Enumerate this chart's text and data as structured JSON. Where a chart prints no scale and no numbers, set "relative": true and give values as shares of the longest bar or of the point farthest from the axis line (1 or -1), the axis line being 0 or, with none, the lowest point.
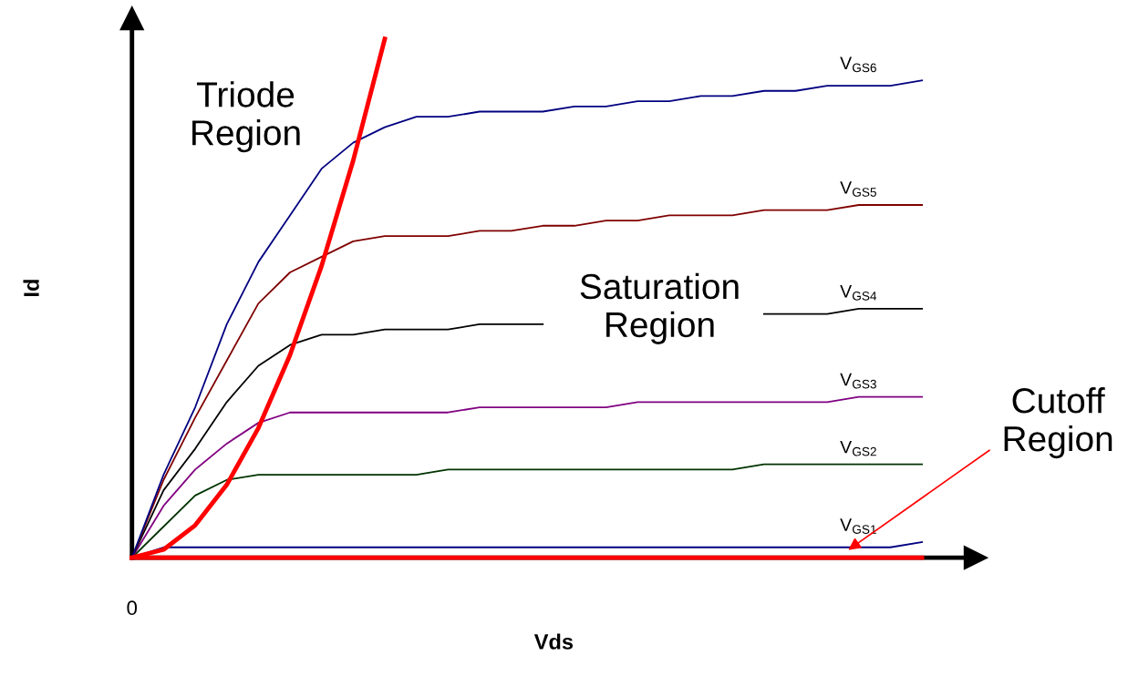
{
  "chart_data": {
    "type": "line",
    "relative": true,
    "xlabel": "Vds",
    "ylabel": "Id",
    "legend": false,
    "grid": false,
    "marker": "none",
    "line_style": "solid",
    "categories": [
      null,
      null,
      null,
      null,
      null,
      null,
      null,
      null,
      null,
      null,
      null,
      null,
      null,
      null,
      null,
      null,
      null,
      null,
      null,
      null,
      null,
      null,
      null,
      null,
      null,
      null
    ],
    "series": [
      {
        "name": "V$_{GS1}$",
        "color": "#000080",
        "values": [
          0,
          0.02,
          0.02,
          0.02,
          0.02,
          0.02,
          0.02,
          0.02,
          0.02,
          0.02,
          0.02,
          0.02,
          0.02,
          0.02,
          0.02,
          0.02,
          0.02,
          0.02,
          0.02,
          0.02,
          0.02,
          0.02,
          0.02,
          0.02,
          0.02,
          0.03
        ]
      },
      {
        "name": "V$_{GS2}$",
        "color": "#003300",
        "values": [
          0,
          0.06,
          0.12,
          0.15,
          0.16,
          0.16,
          0.16,
          0.16,
          0.16,
          0.16,
          0.17,
          0.17,
          0.17,
          0.17,
          0.17,
          0.17,
          0.17,
          0.17,
          0.17,
          0.17,
          0.18,
          0.18,
          0.18,
          0.18,
          0.18,
          0.18
        ]
      },
      {
        "name": "V$_{GS3}$",
        "color": "#800080",
        "values": [
          0,
          0.1,
          0.17,
          0.22,
          0.26,
          0.28,
          0.28,
          0.28,
          0.28,
          0.28,
          0.28,
          0.29,
          0.29,
          0.29,
          0.29,
          0.29,
          0.3,
          0.3,
          0.3,
          0.3,
          0.3,
          0.3,
          0.3,
          0.31,
          0.31,
          0.31
        ]
      },
      {
        "name": "V$_{GS4}$",
        "color": "#000000",
        "values": [
          0,
          0.13,
          0.21,
          0.3,
          0.37,
          0.41,
          0.43,
          0.43,
          0.44,
          0.44,
          0.44,
          0.45,
          0.45,
          0.45,
          null,
          null,
          null,
          null,
          null,
          null,
          0.47,
          0.47,
          0.47,
          0.48,
          0.48,
          0.48
        ]
      },
      {
        "name": "V$_{GS5}$",
        "color": "#800000",
        "values": [
          0,
          0.15,
          0.27,
          0.38,
          0.49,
          0.55,
          0.58,
          0.61,
          0.62,
          0.62,
          0.62,
          0.63,
          0.63,
          0.64,
          0.64,
          0.65,
          0.65,
          0.66,
          0.66,
          0.66,
          0.67,
          0.67,
          0.67,
          0.68,
          0.68,
          0.68
        ]
      },
      {
        "name": "V$_{GS6}$",
        "color": "#000080",
        "values": [
          0,
          0.16,
          0.29,
          0.45,
          0.57,
          0.66,
          0.75,
          0.8,
          0.83,
          0.85,
          0.85,
          0.86,
          0.86,
          0.86,
          0.87,
          0.87,
          0.88,
          0.88,
          0.89,
          0.89,
          0.9,
          0.9,
          0.91,
          0.91,
          0.91,
          0.92
        ]
      },
      {
        "color": "#ff0000",
        "values": [
          0,
          0.0156,
          0.0625,
          0.1406,
          0.25,
          0.3906,
          0.5625,
          0.7656,
          1.0,
          null,
          null,
          null,
          null,
          null,
          null,
          null,
          null,
          null,
          null,
          null,
          null,
          null,
          null,
          null,
          null,
          null
        ]
      },
      {
        "color": "#ff0000",
        "values": [
          0,
          0,
          0,
          0,
          0,
          0,
          0,
          0,
          0,
          0,
          0,
          0,
          0,
          0,
          0,
          0,
          0,
          0,
          0,
          0,
          0,
          0,
          0,
          0,
          0,
          0
        ]
      }
    ],
    "annotations": [
      "Triode\nRegion",
      "Saturation\nRegion",
      "Cutoff\nRegion",
      "0"
    ]
  }
}
